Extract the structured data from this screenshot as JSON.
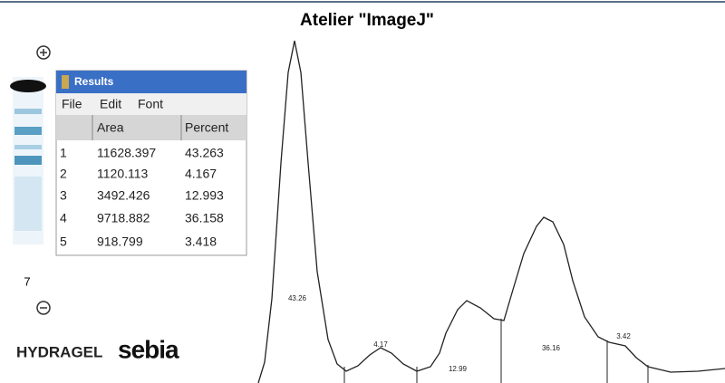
{
  "header": {
    "title": "Atelier \"ImageJ\""
  },
  "gel": {
    "lane_number": "7",
    "brand": "HYDRAGEL",
    "maker": "sebia"
  },
  "results_window": {
    "title": "Results",
    "menu": [
      "File",
      "Edit",
      "Font"
    ],
    "table": {
      "columns": [
        "Area",
        "Percent"
      ],
      "rows": [
        [
          "1",
          "11628.397",
          "43.263"
        ],
        [
          "2",
          "1120.113",
          "4.167"
        ],
        [
          "3",
          "3492.426",
          "12.993"
        ],
        [
          "4",
          "9718.882",
          "36.158"
        ],
        [
          "5",
          "918.799",
          "3.418"
        ]
      ]
    }
  },
  "densitogram": {
    "peak_labels": [
      "43.26",
      "4.17",
      "12.99",
      "36.16",
      "3.42"
    ]
  }
}
